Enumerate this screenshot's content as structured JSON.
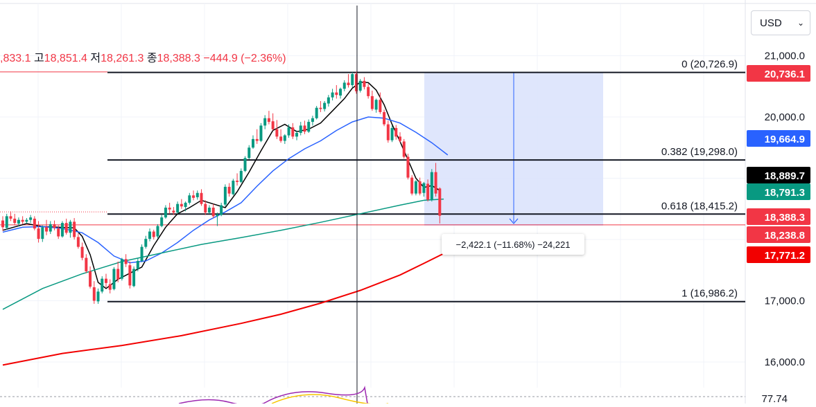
{
  "currency_select": {
    "value": "USD",
    "icon": "chevron-down-icon"
  },
  "ohlc": {
    "open_value": ",833.1",
    "high_label": "고",
    "high_value": "18,851.4",
    "low_label": "저",
    "low_value": "18,261.3",
    "close_label": "종",
    "close_value": "18,388.3",
    "change": "−444.9 (−2.36%)"
  },
  "measure_label": "−2,422.1 (−11.68%) −24,221",
  "rsi_value": "77.74",
  "colors": {
    "up": "#089981",
    "down": "#f23645",
    "ma_short": "#000000",
    "ma_mid": "#2962ff",
    "ma_long": "#089981",
    "ma_200": "#f20000",
    "fib_band": "#dbe3fc"
  },
  "chart_data": {
    "type": "candlestick",
    "y_axis": {
      "ticks": [
        21000,
        20000,
        17000,
        16000
      ],
      "tick_labels": [
        "21,000.0",
        "20,000.0",
        "17,000.0",
        "16,000.0"
      ],
      "range": [
        15500,
        21300
      ]
    },
    "price_badges": [
      {
        "label": "20,736.1",
        "value": 20736.1,
        "color": "#f23645"
      },
      {
        "label": "19,664.9",
        "value": 19664.9,
        "color": "#2962ff"
      },
      {
        "label": "18,889.7",
        "value": 18889.7,
        "color": "#000000"
      },
      {
        "label": "18,791.3",
        "value": 18791.3,
        "color": "#089981"
      },
      {
        "label": "18,388.3",
        "value": 18388.3,
        "color": "#f23645"
      },
      {
        "label": "18,238.8",
        "value": 18238.8,
        "color": "#f23645"
      },
      {
        "label": "17,771.2",
        "value": 17771.2,
        "color": "#f20000"
      }
    ],
    "fib_levels": [
      {
        "label": "0 (20,726.9)",
        "value": 20726.9
      },
      {
        "label": "0.382 (19,298.0)",
        "value": 19298.0
      },
      {
        "label": "0.618 (18,415.2)",
        "value": 18415.2
      },
      {
        "label": "1 (16,986.2)",
        "value": 16986.2
      }
    ],
    "crosshair_index": 89,
    "candles": [
      [
        18310,
        18380,
        18140,
        18200
      ],
      [
        18190,
        18420,
        18160,
        18380
      ],
      [
        18380,
        18460,
        18300,
        18340
      ],
      [
        18340,
        18420,
        18230,
        18270
      ],
      [
        18260,
        18360,
        18210,
        18320
      ],
      [
        18320,
        18380,
        18250,
        18290
      ],
      [
        18290,
        18350,
        18260,
        18320
      ],
      [
        18320,
        18400,
        18270,
        18360
      ],
      [
        18340,
        18380,
        18150,
        18180
      ],
      [
        18180,
        18300,
        17950,
        18010
      ],
      [
        18010,
        18230,
        17960,
        18200
      ],
      [
        18200,
        18320,
        18070,
        18130
      ],
      [
        18130,
        18300,
        18090,
        18250
      ],
      [
        18250,
        18310,
        18150,
        18190
      ],
      [
        18180,
        18230,
        18010,
        18050
      ],
      [
        18050,
        18300,
        18030,
        18270
      ],
      [
        18270,
        18340,
        18080,
        18110
      ],
      [
        18110,
        18320,
        18030,
        18290
      ],
      [
        18290,
        18350,
        18000,
        18040
      ],
      [
        18040,
        18100,
        17850,
        17880
      ],
      [
        17880,
        17950,
        17660,
        17700
      ],
      [
        17700,
        17760,
        17450,
        17480
      ],
      [
        17480,
        17560,
        17200,
        17230
      ],
      [
        17220,
        17320,
        16950,
        17000
      ],
      [
        16990,
        17200,
        16950,
        17150
      ],
      [
        17150,
        17400,
        17120,
        17360
      ],
      [
        17360,
        17440,
        17220,
        17290
      ],
      [
        17270,
        17350,
        17120,
        17180
      ],
      [
        17190,
        17550,
        17170,
        17520
      ],
      [
        17520,
        17640,
        17300,
        17350
      ],
      [
        17360,
        17700,
        17330,
        17680
      ],
      [
        17680,
        17760,
        17550,
        17600
      ],
      [
        17580,
        17640,
        17200,
        17250
      ],
      [
        17240,
        17560,
        17220,
        17520
      ],
      [
        17520,
        17700,
        17480,
        17650
      ],
      [
        17650,
        17920,
        17630,
        17880
      ],
      [
        17880,
        18060,
        17850,
        18010
      ],
      [
        18010,
        18180,
        17970,
        18130
      ],
      [
        18130,
        18160,
        18000,
        18040
      ],
      [
        18050,
        18250,
        18020,
        18220
      ],
      [
        18220,
        18400,
        18200,
        18360
      ],
      [
        18360,
        18560,
        18340,
        18520
      ],
      [
        18520,
        18600,
        18420,
        18490
      ],
      [
        18470,
        18530,
        18400,
        18440
      ],
      [
        18440,
        18620,
        18420,
        18580
      ],
      [
        18580,
        18660,
        18500,
        18540
      ],
      [
        18530,
        18620,
        18460,
        18600
      ],
      [
        18600,
        18760,
        18570,
        18720
      ],
      [
        18720,
        18800,
        18640,
        18680
      ],
      [
        18690,
        18800,
        18650,
        18760
      ],
      [
        18760,
        18820,
        18550,
        18580
      ],
      [
        18580,
        18640,
        18400,
        18440
      ],
      [
        18440,
        18560,
        18420,
        18520
      ],
      [
        18520,
        18580,
        18350,
        18380
      ],
      [
        18380,
        18440,
        18220,
        18410
      ],
      [
        18400,
        18600,
        18380,
        18560
      ],
      [
        18570,
        18900,
        18540,
        18860
      ],
      [
        18860,
        18920,
        18700,
        18750
      ],
      [
        18740,
        18990,
        18720,
        18960
      ],
      [
        18960,
        19080,
        18880,
        18940
      ],
      [
        18940,
        19160,
        18920,
        19120
      ],
      [
        19120,
        19360,
        19100,
        19330
      ],
      [
        19330,
        19540,
        19310,
        19500
      ],
      [
        19500,
        19700,
        19480,
        19640
      ],
      [
        19640,
        19800,
        19560,
        19610
      ],
      [
        19610,
        19900,
        19590,
        19860
      ],
      [
        19860,
        20030,
        19800,
        19980
      ],
      [
        19980,
        20100,
        19880,
        19920
      ],
      [
        19930,
        20060,
        19780,
        19800
      ],
      [
        19800,
        19950,
        19640,
        19680
      ],
      [
        19680,
        19800,
        19580,
        19610
      ],
      [
        19610,
        19720,
        19560,
        19700
      ],
      [
        19700,
        19880,
        19660,
        19830
      ],
      [
        19830,
        19900,
        19640,
        19680
      ],
      [
        19680,
        19780,
        19620,
        19740
      ],
      [
        19740,
        19920,
        19700,
        19860
      ],
      [
        19860,
        19940,
        19720,
        19760
      ],
      [
        19760,
        19960,
        19740,
        19920
      ],
      [
        19920,
        20020,
        19860,
        19980
      ],
      [
        19980,
        20180,
        19960,
        20150
      ],
      [
        20150,
        20260,
        20080,
        20130
      ],
      [
        20130,
        20260,
        20090,
        20230
      ],
      [
        20220,
        20360,
        20170,
        20320
      ],
      [
        20320,
        20460,
        20270,
        20400
      ],
      [
        20400,
        20520,
        20300,
        20360
      ],
      [
        20350,
        20480,
        20300,
        20460
      ],
      [
        20460,
        20600,
        20420,
        20560
      ],
      [
        20560,
        20700,
        20480,
        20520
      ],
      [
        20520,
        20730,
        20480,
        20700
      ],
      [
        20700,
        20740,
        20380,
        20420
      ],
      [
        20430,
        20620,
        20400,
        20590
      ],
      [
        20590,
        20650,
        20450,
        20490
      ],
      [
        20490,
        20540,
        20300,
        20340
      ],
      [
        20340,
        20430,
        20100,
        20130
      ],
      [
        20120,
        20300,
        20070,
        20280
      ],
      [
        20280,
        20400,
        20050,
        20080
      ],
      [
        20080,
        20120,
        19850,
        19880
      ],
      [
        19880,
        19940,
        19580,
        19620
      ],
      [
        19620,
        19860,
        19590,
        19820
      ],
      [
        19820,
        19870,
        19630,
        19680
      ],
      [
        19680,
        19750,
        19580,
        19610
      ],
      [
        19600,
        19640,
        19320,
        19350
      ],
      [
        19350,
        19400,
        18980,
        19010
      ],
      [
        19010,
        19050,
        18720,
        18750
      ],
      [
        18750,
        18970,
        18720,
        18950
      ],
      [
        18950,
        19010,
        18720,
        18750
      ],
      [
        18760,
        18940,
        18700,
        18920
      ],
      [
        18910,
        18980,
        18620,
        18650
      ],
      [
        18650,
        19150,
        18620,
        19100
      ],
      [
        19100,
        19250,
        18700,
        18750
      ],
      [
        18833.1,
        18851.4,
        18261.3,
        18388.3
      ]
    ],
    "series": [
      {
        "name": "",
        "color": "#000000",
        "values": [
          [
            0,
            18150
          ],
          [
            6,
            18260
          ],
          [
            10,
            18210
          ],
          [
            14,
            18200
          ],
          [
            18,
            18190
          ],
          [
            20,
            18050
          ],
          [
            22,
            17750
          ],
          [
            24,
            17300
          ],
          [
            26,
            17200
          ],
          [
            29,
            17350
          ],
          [
            32,
            17450
          ],
          [
            35,
            17550
          ],
          [
            38,
            17900
          ],
          [
            41,
            18200
          ],
          [
            44,
            18420
          ],
          [
            47,
            18520
          ],
          [
            50,
            18640
          ],
          [
            53,
            18580
          ],
          [
            56,
            18520
          ],
          [
            59,
            18780
          ],
          [
            62,
            19100
          ],
          [
            65,
            19450
          ],
          [
            68,
            19780
          ],
          [
            71,
            19880
          ],
          [
            74,
            19760
          ],
          [
            77,
            19800
          ],
          [
            80,
            19900
          ],
          [
            83,
            20100
          ],
          [
            86,
            20300
          ],
          [
            88,
            20470
          ],
          [
            90,
            20570
          ],
          [
            92,
            20560
          ],
          [
            94,
            20440
          ],
          [
            96,
            20200
          ],
          [
            98,
            19880
          ],
          [
            100,
            19600
          ],
          [
            102,
            19300
          ],
          [
            104,
            19000
          ],
          [
            106,
            18850
          ],
          [
            108,
            18880
          ],
          [
            110,
            18800
          ]
        ]
      },
      {
        "name": "",
        "color": "#2962ff",
        "values": [
          [
            0,
            18120
          ],
          [
            5,
            18200
          ],
          [
            10,
            18210
          ],
          [
            15,
            18180
          ],
          [
            20,
            18110
          ],
          [
            24,
            17950
          ],
          [
            28,
            17730
          ],
          [
            32,
            17620
          ],
          [
            36,
            17650
          ],
          [
            40,
            17780
          ],
          [
            44,
            17950
          ],
          [
            48,
            18150
          ],
          [
            52,
            18320
          ],
          [
            56,
            18450
          ],
          [
            60,
            18600
          ],
          [
            64,
            18870
          ],
          [
            68,
            19120
          ],
          [
            72,
            19320
          ],
          [
            76,
            19480
          ],
          [
            80,
            19610
          ],
          [
            84,
            19780
          ],
          [
            88,
            19920
          ],
          [
            92,
            20000
          ],
          [
            96,
            19980
          ],
          [
            100,
            19900
          ],
          [
            104,
            19750
          ],
          [
            108,
            19580
          ],
          [
            112,
            19380
          ]
        ]
      },
      {
        "name": "",
        "color": "#089981",
        "values": [
          [
            0,
            16860
          ],
          [
            10,
            17200
          ],
          [
            20,
            17440
          ],
          [
            30,
            17640
          ],
          [
            40,
            17780
          ],
          [
            50,
            17920
          ],
          [
            60,
            18030
          ],
          [
            70,
            18150
          ],
          [
            80,
            18280
          ],
          [
            90,
            18420
          ],
          [
            100,
            18560
          ],
          [
            106,
            18640
          ],
          [
            111,
            18660
          ]
        ]
      },
      {
        "name": "",
        "color": "#f20000",
        "values": [
          [
            0,
            15950
          ],
          [
            15,
            16140
          ],
          [
            30,
            16270
          ],
          [
            45,
            16430
          ],
          [
            60,
            16630
          ],
          [
            70,
            16780
          ],
          [
            80,
            16960
          ],
          [
            90,
            17170
          ],
          [
            100,
            17420
          ],
          [
            106,
            17610
          ],
          [
            111,
            17771
          ]
        ]
      }
    ]
  }
}
